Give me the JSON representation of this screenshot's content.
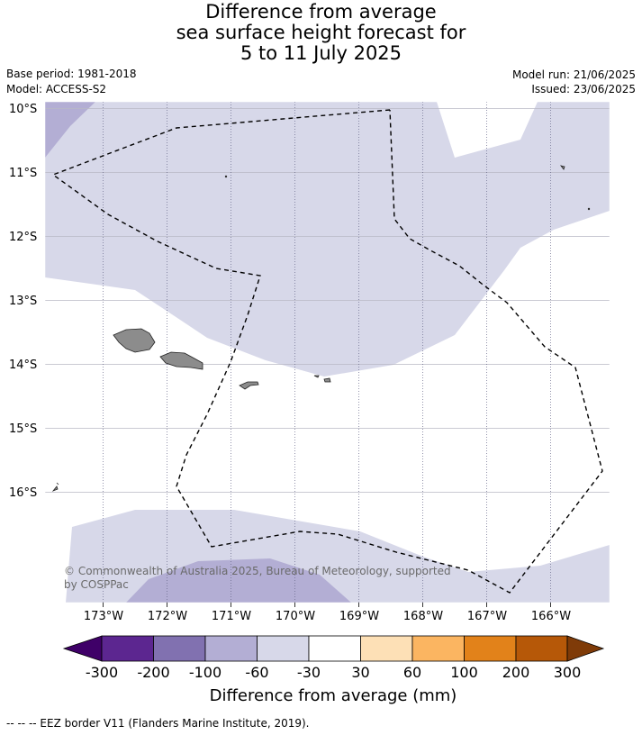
{
  "title": {
    "line1": "Difference from average",
    "line2": "sea surface height forecast for",
    "line3": "5 to 11 July 2025"
  },
  "meta": {
    "base_period": "Base period: 1981-2018",
    "model": "Model: ACCESS-S2",
    "model_run": "Model run: 21/06/2025",
    "issued": "Issued: 23/06/2025"
  },
  "map": {
    "lat_labels": [
      "10°S",
      "11°S",
      "12°S",
      "13°S",
      "14°S",
      "15°S",
      "16°S"
    ],
    "lon_labels": [
      "173°W",
      "172°W",
      "171°W",
      "170°W",
      "169°W",
      "168°W",
      "167°W",
      "166°W"
    ],
    "copyright": "© Commonwealth of Australia 2025, Bureau of Meteorology, supported by COSPPac",
    "copyright_line1": "© Commonwealth of Australia 2025, Bureau of Meteorology, supported",
    "copyright_line2": "by COSPPac",
    "colors": {
      "land": "#8c8c8c",
      "class_neg60_neg30": "#d7d8e9",
      "class_neg100_neg60": "#b3aed4",
      "grid": "#c0c0c0"
    }
  },
  "colorbar": {
    "title": "Difference from average (mm)",
    "ticks": [
      "-300",
      "-200",
      "-100",
      "-60",
      "-30",
      "30",
      "60",
      "100",
      "200",
      "300"
    ],
    "colors": [
      "#3f0068",
      "#5c2690",
      "#8171b0",
      "#b3aed4",
      "#d7d8e9",
      "#ffffff",
      "#fde0b6",
      "#fbb561",
      "#e2821a",
      "#b65808",
      "#7f3b08"
    ]
  },
  "footer": {
    "legend": "--  --  -- EEZ border V11 (Flanders Marine Institute, 2019)."
  }
}
